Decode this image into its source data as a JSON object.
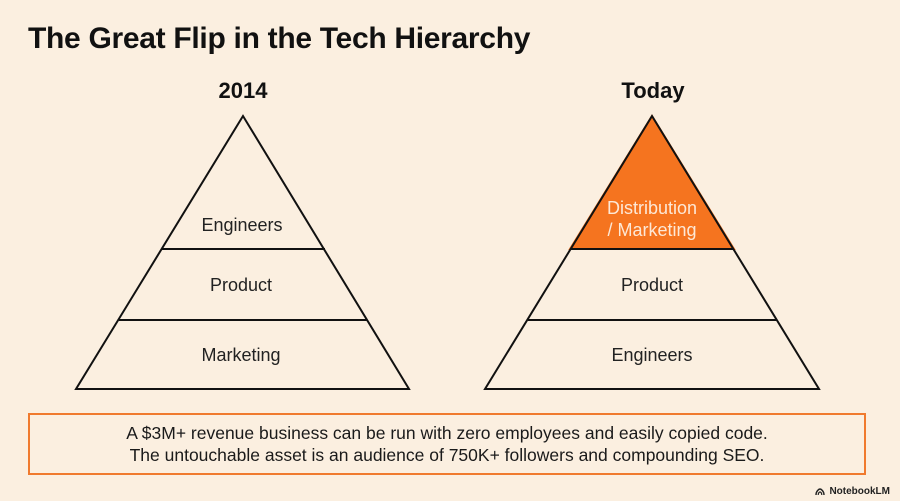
{
  "title": "The Great Flip in the Tech Hierarchy",
  "left": {
    "label": "2014",
    "tiers": [
      "Engineers",
      "Product",
      "Marketing"
    ]
  },
  "right": {
    "label": "Today",
    "tiers": [
      "Distribution\n/ Marketing",
      "Product",
      "Engineers"
    ],
    "top_lines": [
      "Distribution",
      "/ Marketing"
    ]
  },
  "callout": {
    "line1": "A $3M+ revenue business can be run with zero employees and easily copied code.",
    "line2": "The untouchable asset is an audience of 750K+ followers and compounding SEO."
  },
  "brand": "NotebookLM",
  "colors": {
    "accent": "#f07a2e",
    "background": "#fbefe0"
  }
}
